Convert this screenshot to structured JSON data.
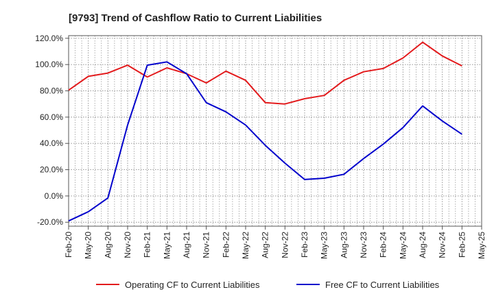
{
  "chart_data": {
    "type": "line",
    "title": "[9793]  Trend of Cashflow Ratio to Current Liabilities",
    "xlabel": "",
    "ylabel": "",
    "y_tick_labels": [
      "-20.0%",
      "0.0%",
      "20.0%",
      "40.0%",
      "60.0%",
      "80.0%",
      "100.0%",
      "120.0%"
    ],
    "y_ticks": [
      -20,
      0,
      20,
      40,
      60,
      80,
      100,
      120
    ],
    "ylim": [
      -23,
      122
    ],
    "grid": true,
    "legend_position": "bottom",
    "x": [
      "Feb-20",
      "May-20",
      "Aug-20",
      "Nov-20",
      "Feb-21",
      "May-21",
      "Aug-21",
      "Nov-21",
      "Feb-22",
      "May-22",
      "Aug-22",
      "Nov-22",
      "Feb-23",
      "May-23",
      "Aug-23",
      "Nov-23",
      "Feb-24",
      "May-24",
      "Aug-24",
      "Nov-24",
      "Feb-25",
      "May-25"
    ],
    "series": [
      {
        "name": "Operating CF to Current Liabilities",
        "color": "#e31a1c",
        "values": [
          80.5,
          91,
          93.5,
          99.5,
          90.5,
          97.5,
          93,
          86,
          95,
          88,
          71,
          70,
          74,
          76.5,
          88,
          94.5,
          97,
          105,
          117,
          106.5,
          99,
          null
        ]
      },
      {
        "name": "Free CF to Current Liabilities",
        "color": "#0000cc",
        "values": [
          -19,
          -12,
          -1.5,
          54,
          99.5,
          102,
          93,
          71,
          64,
          54,
          38.5,
          25,
          12.5,
          13.5,
          16.5,
          28.5,
          39.5,
          52,
          68.5,
          57,
          47,
          null
        ]
      }
    ]
  }
}
